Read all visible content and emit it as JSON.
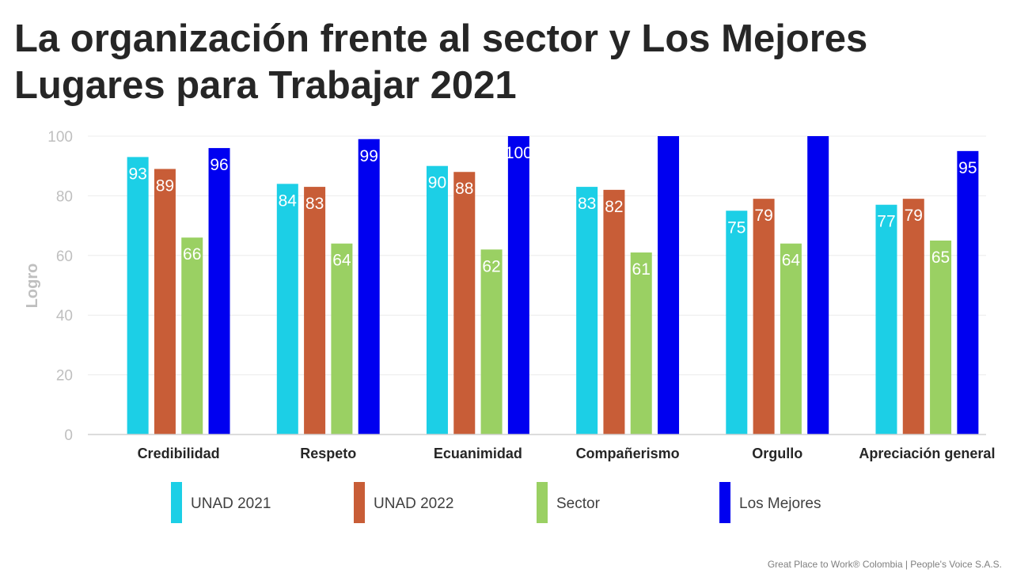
{
  "page": {
    "title": "La organización frente al sector y Los Mejores Lugares para Trabajar 2021",
    "footer": "Great Place to Work® Colombia | People's Voice S.A.S."
  },
  "chart_data": {
    "type": "bar",
    "title": "",
    "xlabel": "",
    "ylabel": "Logro",
    "ylim": [
      0,
      100
    ],
    "yticks": [
      0,
      20,
      40,
      60,
      80,
      100
    ],
    "grid": true,
    "legend_position": "bottom",
    "categories": [
      "Credibilidad",
      "Respeto",
      "Ecuanimidad",
      "Compañerismo",
      "Orgullo",
      "Apreciación general"
    ],
    "series": [
      {
        "name": "UNAD 2021",
        "color": "#1CCFE6",
        "values": [
          93,
          84,
          90,
          83,
          75,
          77
        ],
        "labels": [
          "93",
          "84",
          "90",
          "83",
          "75",
          "77"
        ]
      },
      {
        "name": "UNAD 2022",
        "color": "#C85D37",
        "values": [
          89,
          83,
          88,
          82,
          79,
          79
        ],
        "labels": [
          "89",
          "83",
          "88",
          "82",
          "79",
          "79"
        ]
      },
      {
        "name": "Sector",
        "color": "#9AD063",
        "values": [
          66,
          64,
          62,
          61,
          64,
          65
        ],
        "labels": [
          "66",
          "64",
          "62",
          "61",
          "64",
          "65"
        ]
      },
      {
        "name": "Los Mejores",
        "color": "#0000F0",
        "values": [
          96,
          99,
          100,
          100,
          100,
          95
        ],
        "labels": [
          "96",
          "99",
          "100",
          "",
          "",
          "95"
        ]
      }
    ]
  }
}
